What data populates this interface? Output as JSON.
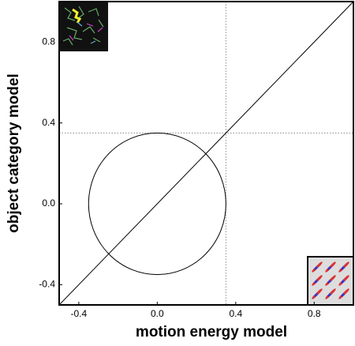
{
  "chart_data": {
    "type": "line",
    "x": [
      -0.5,
      1.0
    ],
    "series": [
      {
        "values": [
          -0.5,
          1.0
        ],
        "color": "#000000"
      }
    ],
    "circle": {
      "x": 0,
      "y": 0,
      "radius": 0.35
    },
    "xlines": [
      0.35
    ],
    "ylines": [
      0.35
    ],
    "xlabel": "motion energy model",
    "ylabel": "object category model",
    "xlim": [
      -0.5,
      1.0
    ],
    "ylim": [
      -0.5,
      1.0
    ],
    "xticks": [
      -0.4,
      {
        "value": 0,
        "label": "0.0"
      },
      0.4,
      0.8
    ],
    "yticks": [
      -0.4,
      {
        "value": 0,
        "label": "0.0"
      },
      0.4,
      0.8
    ]
  }
}
